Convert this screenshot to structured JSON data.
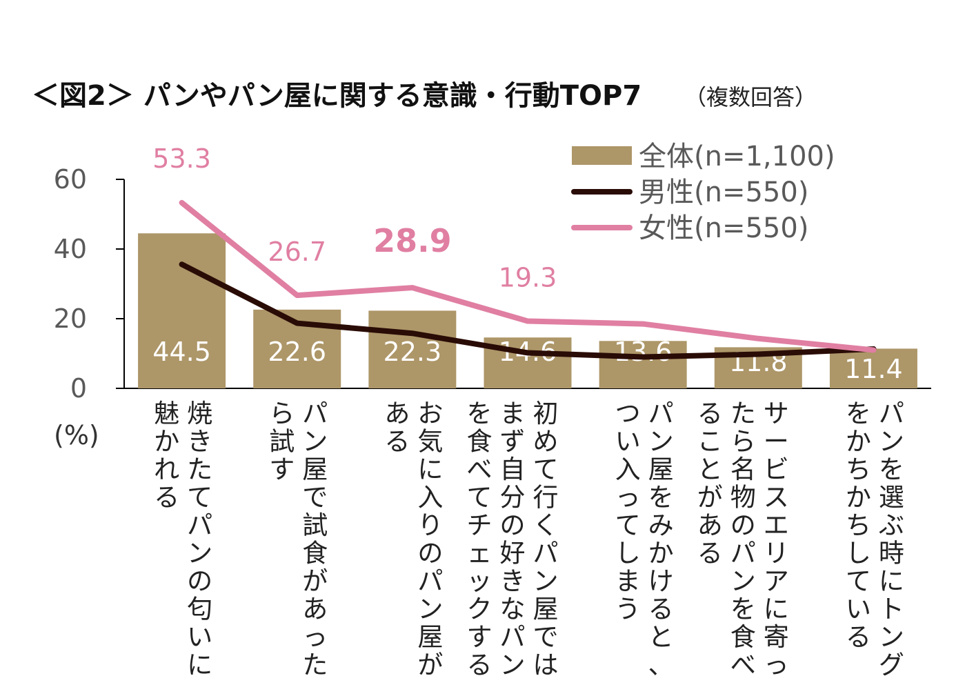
{
  "chart_data": {
    "type": "bar",
    "title": "＜図2＞ パンやパン屋に関する意識・行動TOP7",
    "subtitle": "（複数回答）",
    "ylabel": "(%)",
    "ylim": [
      0,
      60
    ],
    "yticks": [
      0,
      20,
      40,
      60
    ],
    "grid": false,
    "legend_position": "top-right",
    "categories": [
      "焼きたてパンの匂いに魅かれる",
      "パン屋で試食があったら試す",
      "お気に入りのパン屋がある",
      "初めて行くパン屋ではまず自分の好きなパンを食べてチェックする",
      "パン屋をみかけると、つい入ってしまう",
      "サービスエリアに寄ったら名物のパンを食べることがある",
      "パンを選ぶ時にトングをかちかちしている"
    ],
    "category_lines": [
      [
        "焼きたてパンの匂いに",
        "魅かれる"
      ],
      [
        "パン屋で試食があった",
        "ら試す"
      ],
      [
        "お気に入りのパン屋が",
        "ある"
      ],
      [
        "初めて行くパン屋では",
        "まず自分の好きなパン",
        "を食べてチェックする"
      ],
      [
        "パン屋をみかけると、",
        "つい入ってしまう"
      ],
      [
        "サービスエリアに寄っ",
        "たら名物のパンを食べ",
        "ることがある"
      ],
      [
        "パンを選ぶ時にトング",
        "をかちかちしている"
      ]
    ],
    "series": [
      {
        "name": "全体(n=1,100)",
        "kind": "bar",
        "color": "#ad9668",
        "values": [
          44.5,
          22.6,
          22.3,
          14.6,
          13.6,
          11.8,
          11.4
        ],
        "labels": [
          "44.5",
          "22.6",
          "22.3",
          "14.6",
          "13.6",
          "11.8",
          "11.4"
        ]
      },
      {
        "name": "男性(n=550)",
        "kind": "line",
        "color": "#2a0c06",
        "values": [
          35.6,
          18.7,
          15.8,
          10.2,
          9.0,
          9.8,
          11.3
        ]
      },
      {
        "name": "女性(n=550)",
        "kind": "line",
        "color": "#e07fa2",
        "values": [
          53.3,
          26.7,
          28.9,
          19.3,
          18.5,
          14.3,
          11.0
        ],
        "labels": [
          "53.3",
          "26.7",
          "28.9",
          "19.3",
          "",
          "",
          ""
        ],
        "emphasized_label_index": 2
      }
    ]
  }
}
